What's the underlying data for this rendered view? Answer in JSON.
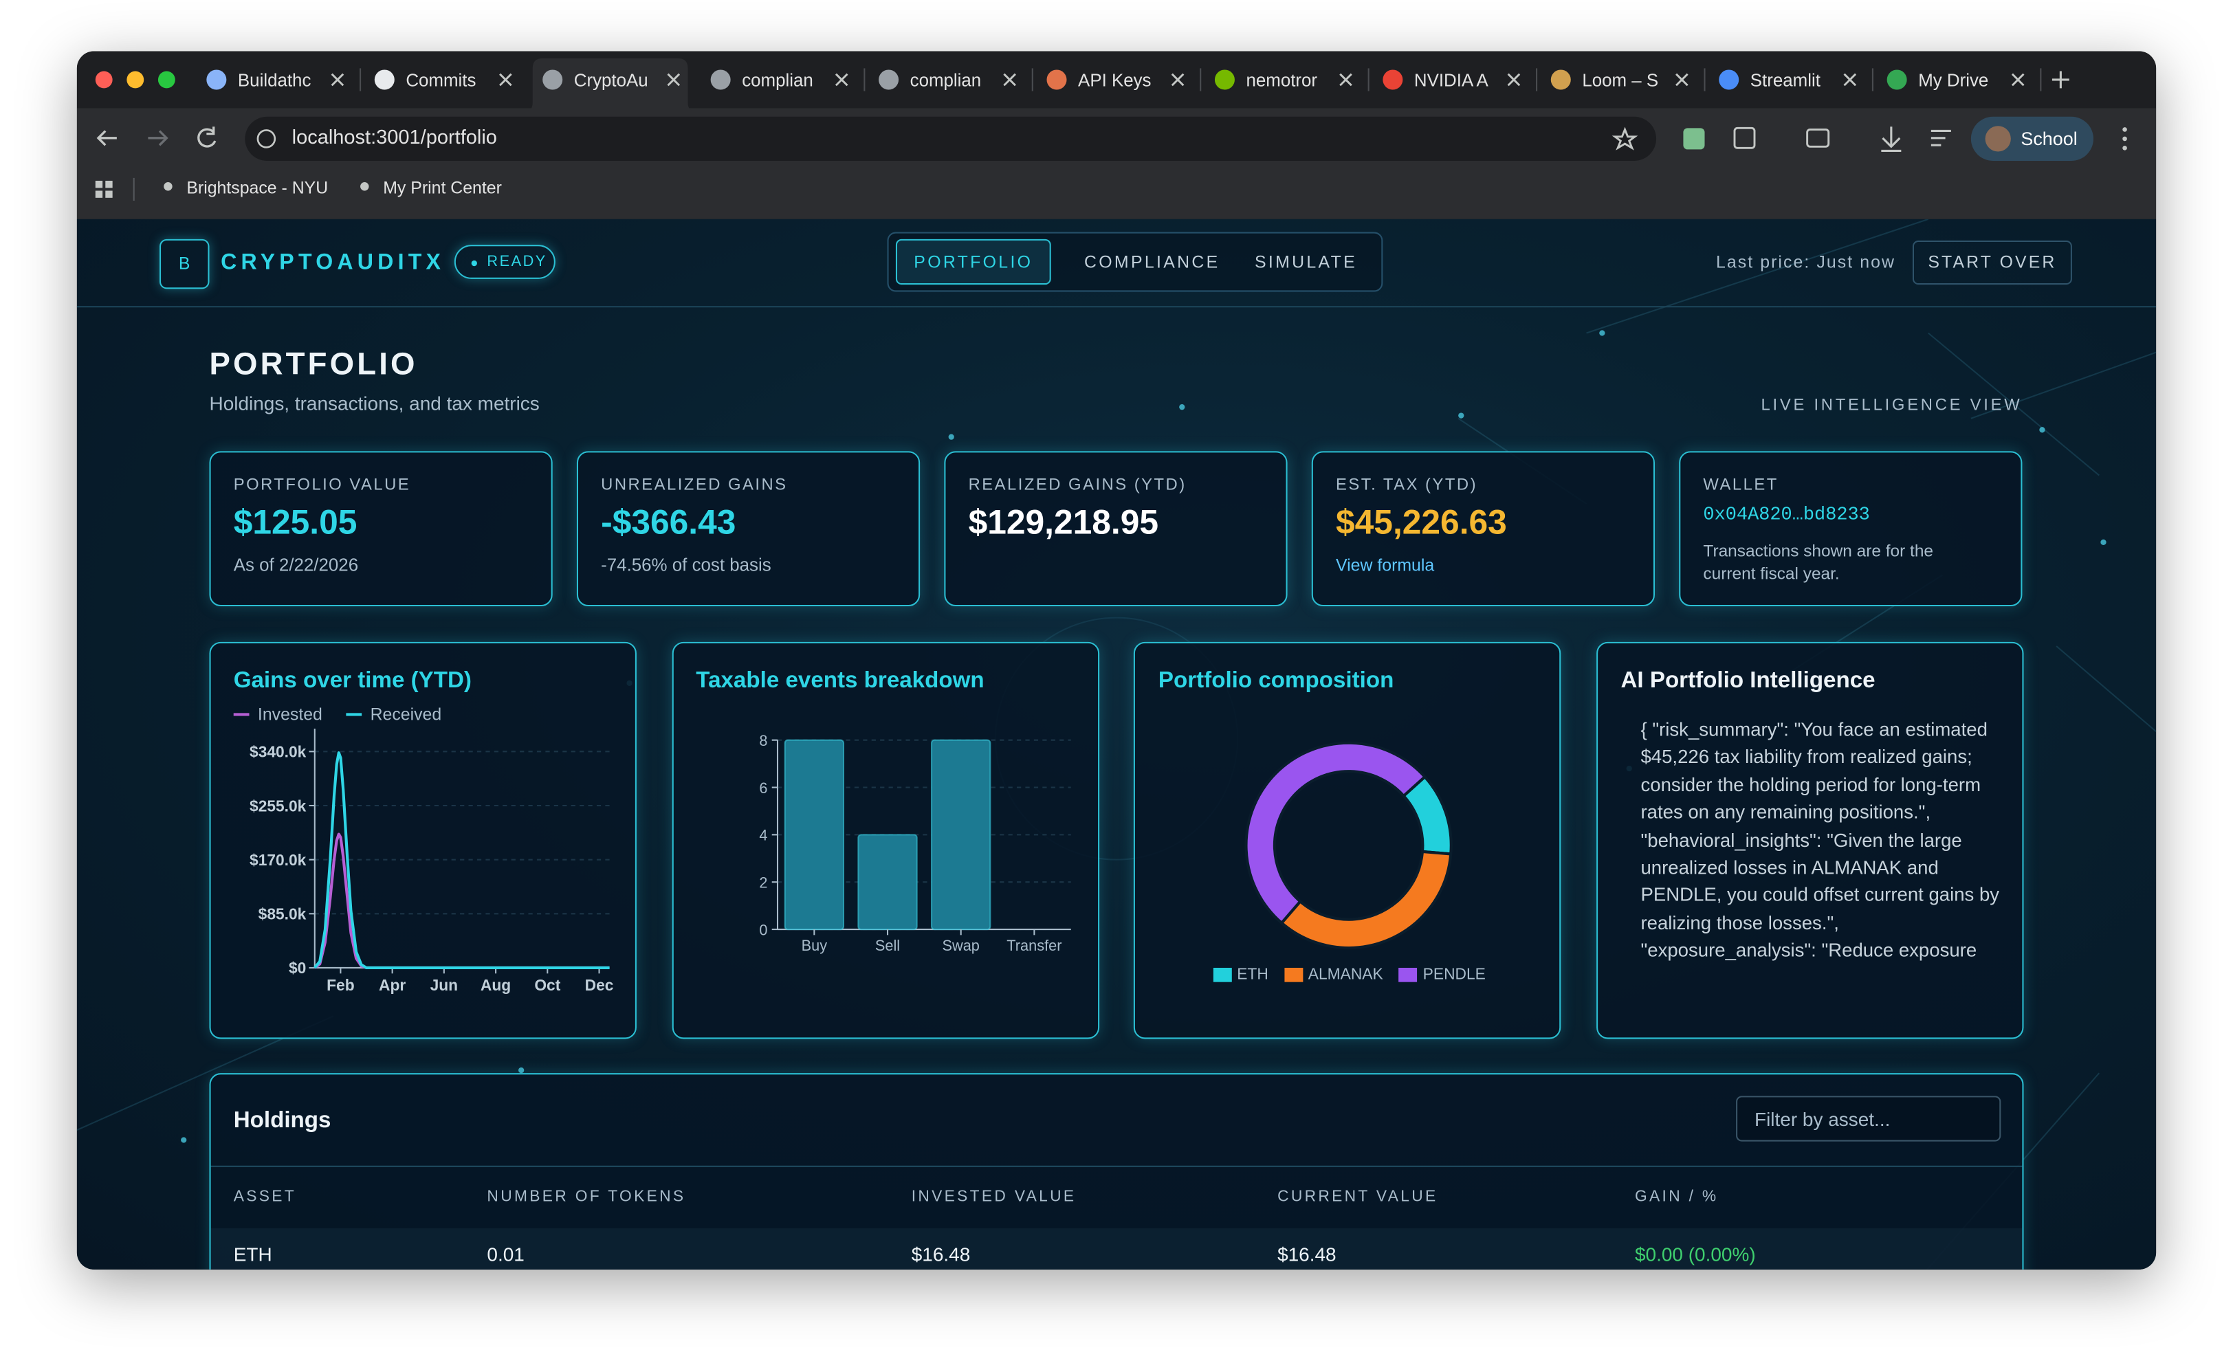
{
  "browser": {
    "tabs": [
      "Buildathc",
      "Commits",
      "CryptoAu",
      "complian",
      "complian",
      "API Keys",
      "nemotror",
      "NVIDIA A",
      "Loom – S",
      "Streamlit",
      "My Drive"
    ],
    "active_tab": 2,
    "url": "localhost:3001/portfolio",
    "bookmarks": [
      "Brightspace - NYU",
      "My Print Center"
    ],
    "profile": "School"
  },
  "header": {
    "logo": "B",
    "brand": "CRYPTOAUDITX",
    "status": "READY",
    "nav": [
      "PORTFOLIO",
      "COMPLIANCE",
      "SIMULATE"
    ],
    "active_nav": 0,
    "last_price": "Last price: Just now",
    "start_over": "START OVER"
  },
  "page": {
    "title": "PORTFOLIO",
    "subtitle": "Holdings, transactions, and tax metrics",
    "badge": "LIVE INTELLIGENCE VIEW"
  },
  "cards": [
    {
      "label": "PORTFOLIO VALUE",
      "value": "$125.05",
      "note": "As of 2/22/2026",
      "color": "#2fd6e6"
    },
    {
      "label": "UNREALIZED GAINS",
      "value": "-$366.43",
      "note": "-74.56% of cost basis",
      "color": "#2fd6e6"
    },
    {
      "label": "REALIZED GAINS (YTD)",
      "value": "$129,218.95",
      "color": "#ffffff"
    },
    {
      "label": "EST. TAX (YTD)",
      "value": "$45,226.63",
      "note": "View formula",
      "color": "#f5b731"
    },
    {
      "label": "WALLET",
      "value": "0x04A820…bd8233",
      "note": "Transactions shown are for the current fiscal year.",
      "color": "#2fd6e6"
    }
  ],
  "gains_chart": {
    "type": "line",
    "title": "Gains over time (YTD)",
    "x": [
      1,
      1.2,
      1.4,
      1.6,
      1.75,
      1.85,
      1.93,
      2.0,
      2.1,
      2.25,
      2.4,
      2.6,
      2.8,
      3,
      12.4
    ],
    "xlim": [
      1,
      12.4
    ],
    "xticks": [
      {
        "value": 2,
        "label": "Feb"
      },
      {
        "value": 4,
        "label": "Apr"
      },
      {
        "value": 6,
        "label": "Jun"
      },
      {
        "value": 8,
        "label": "Aug"
      },
      {
        "value": 10,
        "label": "Oct"
      },
      {
        "value": 12,
        "label": "Dec"
      }
    ],
    "ylim": [
      0,
      358000
    ],
    "yticks": [
      {
        "value": 0,
        "label": "$0"
      },
      {
        "value": 85000,
        "label": "$85.0k"
      },
      {
        "value": 170000,
        "label": "$170.0k"
      },
      {
        "value": 255000,
        "label": "$255.0k"
      },
      {
        "value": 340000,
        "label": "$340.0k"
      }
    ],
    "series": [
      {
        "name": "Invested",
        "color": "#b65fd4",
        "values": [
          0,
          6000,
          40000,
          110000,
          170000,
          200000,
          210000,
          205000,
          175000,
          115000,
          55000,
          15000,
          3000,
          0,
          0
        ]
      },
      {
        "name": "Received",
        "color": "#2fd6e6",
        "values": [
          0,
          10000,
          60000,
          170000,
          270000,
          320000,
          338000,
          330000,
          280000,
          180000,
          90000,
          25000,
          5000,
          0,
          0
        ]
      }
    ]
  },
  "events_chart": {
    "type": "bar",
    "title": "Taxable events breakdown",
    "categories": [
      "Buy",
      "Sell",
      "Swap",
      "Transfer"
    ],
    "values": [
      8,
      4,
      8,
      0
    ],
    "color": "#1c7a92",
    "ylim": [
      0,
      8
    ],
    "yticks": [
      0,
      2,
      4,
      6,
      8
    ]
  },
  "composition_chart": {
    "type": "pie",
    "title": "Portfolio composition",
    "categories": [
      "ETH",
      "ALMANAK",
      "PENDLE"
    ],
    "values": [
      13,
      35,
      52
    ],
    "colors": [
      "#22d0dc",
      "#f57a1f",
      "#9a55ef"
    ]
  },
  "ai_panel": {
    "title": "AI Portfolio Intelligence",
    "text": "{ \"risk_summary\": \"You face an estimated $45,226 tax liability from realized gains; consider the holding period for long-term rates on any remaining positions.\", \"behavioral_insights\": \"Given the large unrealized losses in ALMANAK and PENDLE, you could offset current gains by realizing those losses.\", \"exposure_analysis\": \"Reduce exposure"
  },
  "holdings": {
    "title": "Holdings",
    "filter_placeholder": "Filter by asset...",
    "columns": [
      "ASSET",
      "NUMBER OF TOKENS",
      "INVESTED VALUE",
      "CURRENT VALUE",
      "GAIN / %"
    ],
    "rows": [
      [
        "ETH",
        "0.01",
        "$16.48",
        "$16.48",
        "$0.00 (0.00%)"
      ]
    ]
  }
}
